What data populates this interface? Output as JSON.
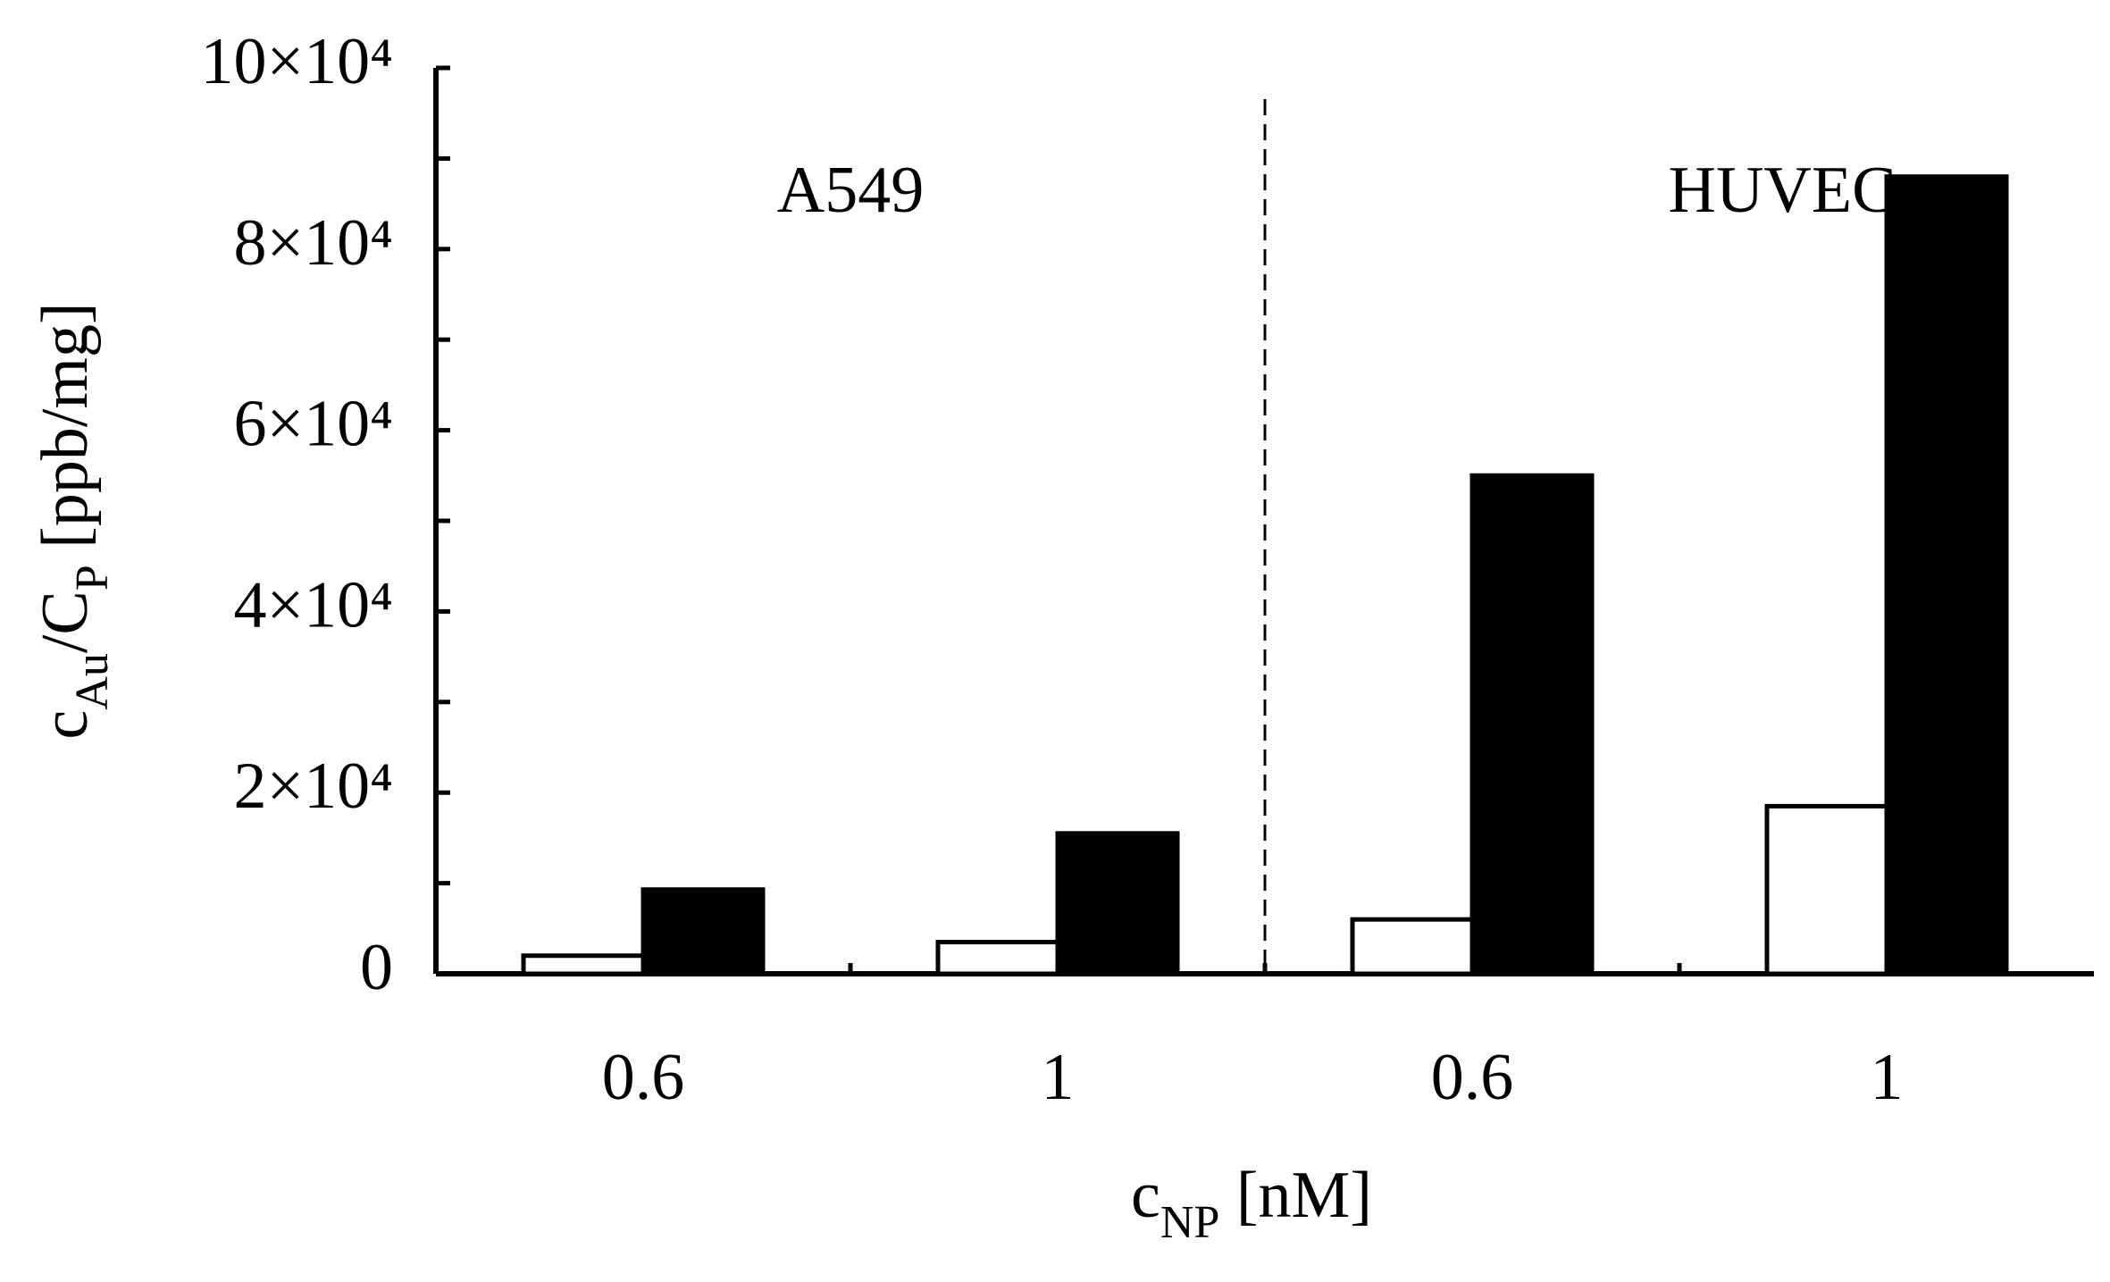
{
  "chart_data": {
    "type": "bar",
    "categories": [
      "0.6",
      "1",
      "0.6",
      "1"
    ],
    "series": [
      {
        "color": "#ffffff",
        "values": [
          2000,
          3500,
          6000,
          18500
        ]
      },
      {
        "color": "#000000",
        "values": [
          9300,
          15500,
          55000,
          88000
        ]
      }
    ],
    "groups": [
      "A549",
      "HUVEC"
    ],
    "xlabel": [
      {
        "text": "c"
      },
      {
        "text": "NP",
        "sub": true
      },
      {
        "text": " [nM]"
      }
    ],
    "ylabel": [
      {
        "text": "c"
      },
      {
        "text": "Au",
        "sub": true
      },
      {
        "text": "/C"
      },
      {
        "text": "P",
        "sub": true
      },
      {
        "text": " [ppb/mg]"
      }
    ],
    "ylim": [
      0,
      100000
    ],
    "yticks": [
      0,
      {
        "value": 20000,
        "label": "2×10⁴"
      },
      {
        "value": 40000,
        "label": "4×10⁴"
      },
      {
        "value": 60000,
        "label": "6×10⁴"
      },
      {
        "value": 80000,
        "label": "8×10⁴"
      },
      {
        "value": 100000,
        "label": "10×10⁴"
      }
    ],
    "minor_yticks": [
      10000,
      30000,
      50000,
      70000,
      90000
    ],
    "grid": false
  }
}
